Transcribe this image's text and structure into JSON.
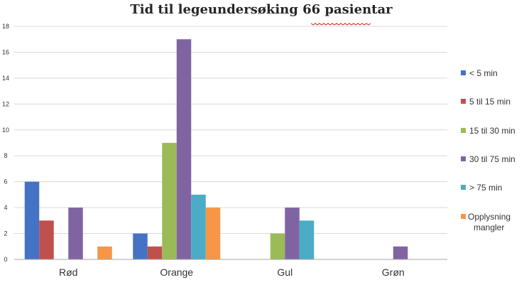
{
  "chart_data": {
    "type": "bar",
    "title": "Tid til legeundersøking 66 pasientar",
    "xlabel": "",
    "ylabel": "",
    "ylim": [
      0,
      18
    ],
    "ytick_step": 2,
    "y_ticks": [
      "0",
      "2",
      "4",
      "6",
      "8",
      "10",
      "12",
      "14",
      "16",
      "18"
    ],
    "grid": true,
    "legend_position": "right",
    "categories": [
      "Rød",
      "Orange",
      "Gul",
      "Grøn"
    ],
    "series": [
      {
        "name": "< 5 min",
        "color": "#4472c4",
        "values": [
          6,
          2,
          0,
          0
        ]
      },
      {
        "name": "5 til 15 min",
        "color": "#c0504d",
        "values": [
          3,
          1,
          0,
          0
        ]
      },
      {
        "name": "15 til 30 min",
        "color": "#9bbb59",
        "values": [
          0,
          9,
          2,
          0
        ]
      },
      {
        "name": "30 til 75 min",
        "color": "#8064a2",
        "values": [
          4,
          17,
          4,
          1
        ]
      },
      {
        "name": "> 75 min",
        "color": "#4bacc6",
        "values": [
          0,
          5,
          3,
          0
        ]
      },
      {
        "name": "Opplysning mangler",
        "legend_lines": [
          "Opplysning",
          "mangler"
        ],
        "color": "#f79646",
        "values": [
          1,
          4,
          0,
          0
        ]
      }
    ]
  }
}
